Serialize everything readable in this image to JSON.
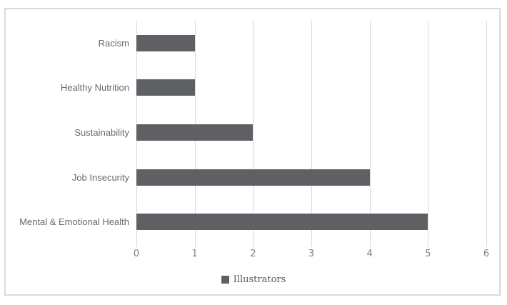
{
  "chart_data": {
    "type": "bar",
    "orientation": "horizontal",
    "title": "",
    "categories_top_to_bottom": [
      "Racism",
      "Healthy Nutrition",
      "Sustainability",
      "Job Insecurity",
      "Mental & Emotional Health"
    ],
    "values": [
      1,
      1,
      2,
      4,
      5
    ],
    "series": [
      {
        "name": "Illustrators",
        "values": [
          1,
          1,
          2,
          4,
          5
        ]
      }
    ],
    "xlabel": "",
    "ylabel": "",
    "xlim": [
      0,
      6
    ],
    "x_ticks": [
      0,
      1,
      2,
      3,
      4,
      5,
      6
    ],
    "grid": true,
    "legend_position": "bottom",
    "colors": {
      "bar": "#5f6064",
      "gridline": "#d9d9d9",
      "frame_border": "#d9d9d9",
      "category_text": "#696969",
      "axis_text": "#7f7f7f",
      "legend_text": "#595959",
      "background": "#ffffff"
    }
  },
  "legend": {
    "label": "Illustrators"
  }
}
